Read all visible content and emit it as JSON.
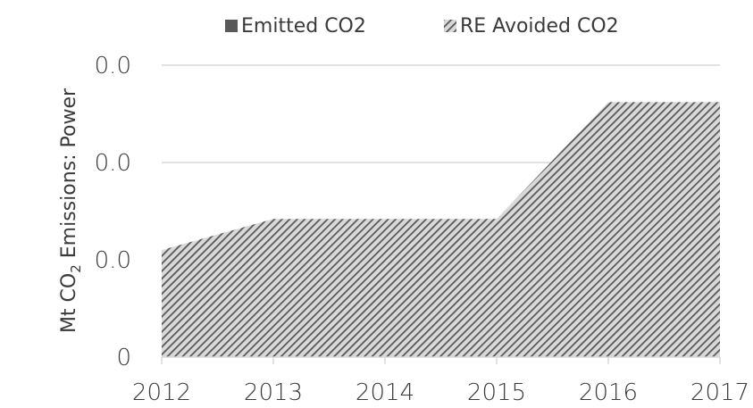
{
  "chart_data": {
    "type": "area",
    "stacked": true,
    "categories": [
      "2012",
      "2013",
      "2014",
      "2015",
      "2016",
      "2017"
    ],
    "series": [
      {
        "name": "Emitted CO2",
        "values": [
          0,
          0,
          0,
          0,
          0,
          0
        ],
        "color": "#595959",
        "fill": "solid"
      },
      {
        "name": "RE Avoided CO2",
        "values": [
          0.011,
          0.0142,
          0.0142,
          0.0142,
          0.0262,
          0.0262
        ],
        "color": "#595959",
        "fill": "diagonal-hatch"
      }
    ],
    "yticks": [
      {
        "value": 0,
        "label": "0"
      },
      {
        "value": 0.01,
        "label": "0.0"
      },
      {
        "value": 0.02,
        "label": "0.0"
      },
      {
        "value": 0.03,
        "label": "0.0"
      }
    ],
    "ylim": [
      0,
      0.03
    ],
    "ylabel": {
      "prefix": "Mt CO",
      "subscript": "2",
      "suffix": " Emissions: Power"
    },
    "xlabel": "",
    "grid": true,
    "legend_position": "top"
  }
}
